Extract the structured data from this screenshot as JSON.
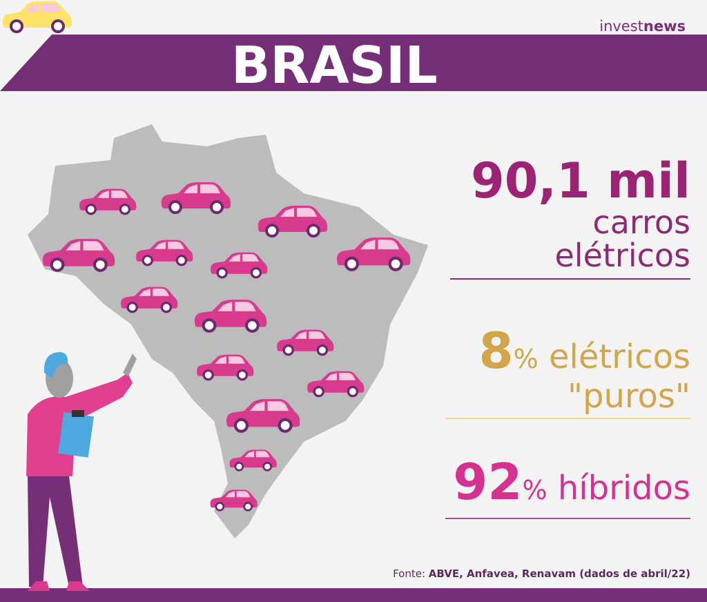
{
  "logo": {
    "light": "invest",
    "bold": "news"
  },
  "banner": {
    "title": "BRASIL"
  },
  "stats": [
    {
      "number": "90,1 mil",
      "lines": [
        "carros",
        "elétricos"
      ]
    },
    {
      "number": "8",
      "unit": "%",
      "lines": [
        " elétricos",
        "\"puros\""
      ]
    },
    {
      "number": "92",
      "unit": "%",
      "lines": [
        " híbridos"
      ]
    }
  ],
  "source": {
    "label": "Fonte: ",
    "text": "ABVE, Anfavea, Renavam (dados de abril/22)"
  }
}
